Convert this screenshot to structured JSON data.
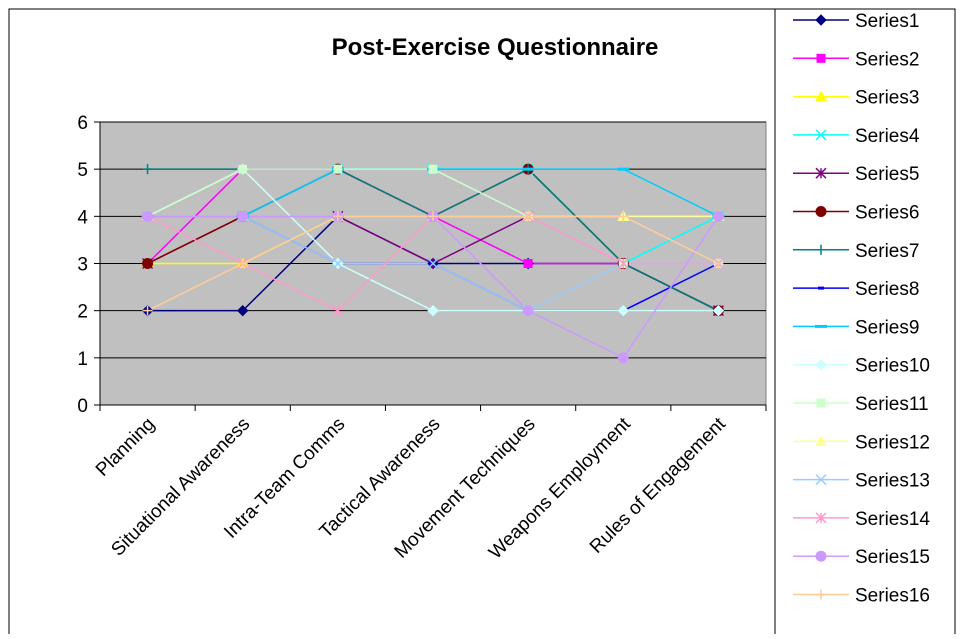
{
  "chart_data": {
    "type": "line",
    "title": "Post-Exercise Questionnaire",
    "xlabel": "",
    "ylabel": "",
    "ylim": [
      0,
      6
    ],
    "yticks": [
      0,
      1,
      2,
      3,
      4,
      5,
      6
    ],
    "grid": true,
    "legend_position": "right",
    "plot_background": "#c0c0c0",
    "categories": [
      "Planning",
      "Situational Awareness",
      "Intra-Team Comms",
      "Tactical Awareness",
      "Movement Techniques",
      "Weapons Employment",
      "Rules of Engagement"
    ],
    "series": [
      {
        "name": "Series1",
        "color": "#000080",
        "marker": "diamond",
        "values": [
          2,
          2,
          4,
          3,
          3,
          3,
          2
        ]
      },
      {
        "name": "Series2",
        "color": "#ff00ff",
        "marker": "square",
        "values": [
          3,
          5,
          5,
          4,
          3,
          3,
          3
        ]
      },
      {
        "name": "Series3",
        "color": "#ffff00",
        "marker": "triangle",
        "values": [
          3,
          3,
          4,
          4,
          4,
          4,
          4
        ]
      },
      {
        "name": "Series4",
        "color": "#00ffff",
        "marker": "x",
        "values": [
          4,
          4,
          5,
          5,
          5,
          3,
          4
        ]
      },
      {
        "name": "Series5",
        "color": "#800080",
        "marker": "star",
        "values": [
          3,
          4,
          4,
          3,
          4,
          3,
          2
        ]
      },
      {
        "name": "Series6",
        "color": "#800000",
        "marker": "circle",
        "values": [
          3,
          4,
          5,
          4,
          5,
          3,
          2
        ]
      },
      {
        "name": "Series7",
        "color": "#008080",
        "marker": "plus",
        "values": [
          5,
          5,
          5,
          4,
          5,
          3,
          2
        ]
      },
      {
        "name": "Series8",
        "color": "#0000ff",
        "marker": "dash",
        "values": [
          4,
          4,
          3,
          3,
          2,
          2,
          3
        ]
      },
      {
        "name": "Series9",
        "color": "#00ccff",
        "marker": "longdash",
        "values": [
          4,
          4,
          5,
          5,
          5,
          5,
          4
        ]
      },
      {
        "name": "Series10",
        "color": "#ccffff",
        "marker": "diamond",
        "values": [
          4,
          5,
          3,
          2,
          2,
          2,
          2
        ]
      },
      {
        "name": "Series11",
        "color": "#ccffcc",
        "marker": "square",
        "values": [
          4,
          5,
          5,
          5,
          4,
          3,
          3
        ]
      },
      {
        "name": "Series12",
        "color": "#ffff99",
        "marker": "triangle",
        "values": [
          4,
          4,
          4,
          4,
          4,
          4,
          4
        ]
      },
      {
        "name": "Series13",
        "color": "#99ccff",
        "marker": "x",
        "values": [
          4,
          4,
          3,
          3,
          2,
          3,
          3
        ]
      },
      {
        "name": "Series14",
        "color": "#ff99cc",
        "marker": "star",
        "values": [
          4,
          3,
          2,
          4,
          4,
          3,
          3
        ]
      },
      {
        "name": "Series15",
        "color": "#cc99ff",
        "marker": "circle",
        "values": [
          4,
          4,
          4,
          4,
          2,
          1,
          4
        ]
      },
      {
        "name": "Series16",
        "color": "#ffcc99",
        "marker": "plus",
        "values": [
          2,
          3,
          4,
          4,
          4,
          4,
          3
        ]
      }
    ]
  }
}
